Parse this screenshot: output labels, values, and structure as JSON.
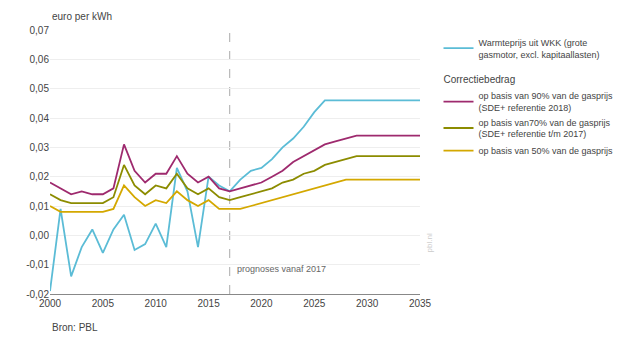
{
  "chart_data": {
    "type": "line",
    "ylabel": "euro per kWh",
    "source": "Bron: PBL",
    "watermark": "pbl.nl",
    "vline": {
      "x": 2017,
      "label": "prognoses vanaf 2017"
    },
    "x": [
      2000,
      2001,
      2002,
      2003,
      2004,
      2005,
      2006,
      2007,
      2008,
      2009,
      2010,
      2011,
      2012,
      2013,
      2014,
      2015,
      2016,
      2017,
      2018,
      2019,
      2020,
      2021,
      2022,
      2023,
      2024,
      2025,
      2026,
      2027,
      2028,
      2029,
      2030,
      2031,
      2032,
      2033,
      2034,
      2035
    ],
    "series": [
      {
        "name": "Warmteprijs uit WKK (grote\ngasmotor, excl. kapitaallasten)",
        "color": "#5bbcd6",
        "values": [
          -0.019,
          0.009,
          -0.014,
          -0.004,
          0.002,
          -0.006,
          0.002,
          0.007,
          -0.005,
          -0.003,
          0.004,
          -0.004,
          0.023,
          0.015,
          -0.004,
          0.02,
          0.017,
          0.015,
          0.019,
          0.022,
          0.023,
          0.026,
          0.03,
          0.033,
          0.037,
          0.042,
          0.046,
          0.046,
          0.046,
          0.046,
          0.046,
          0.046,
          0.046,
          0.046,
          0.046,
          0.046
        ]
      },
      {
        "name": "op basis van 90% van de gasprijs\n(SDE+ referentie 2018)",
        "group": "Correctiebedrag",
        "color": "#9e2a6e",
        "values": [
          0.018,
          0.016,
          0.014,
          0.015,
          0.014,
          0.014,
          0.016,
          0.031,
          0.022,
          0.018,
          0.021,
          0.021,
          0.027,
          0.021,
          0.018,
          0.02,
          0.016,
          0.015,
          0.016,
          0.017,
          0.018,
          0.02,
          0.022,
          0.025,
          0.027,
          0.029,
          0.031,
          0.032,
          0.033,
          0.034,
          0.034,
          0.034,
          0.034,
          0.034,
          0.034,
          0.034
        ]
      },
      {
        "name": "op basis van70% van de gasprijs\n(SDE+ referentie t/m 2017)",
        "group": "Correctiebedrag",
        "color": "#8c8c00",
        "values": [
          0.014,
          0.012,
          0.011,
          0.011,
          0.011,
          0.011,
          0.013,
          0.024,
          0.017,
          0.014,
          0.017,
          0.016,
          0.021,
          0.016,
          0.014,
          0.016,
          0.013,
          0.012,
          0.013,
          0.014,
          0.015,
          0.016,
          0.018,
          0.019,
          0.021,
          0.022,
          0.024,
          0.025,
          0.026,
          0.027,
          0.027,
          0.027,
          0.027,
          0.027,
          0.027,
          0.027
        ]
      },
      {
        "name": "op basis van 50% van de gasprijs",
        "group": "Correctiebedrag",
        "color": "#d4a800",
        "values": [
          0.01,
          0.008,
          0.008,
          0.008,
          0.008,
          0.008,
          0.009,
          0.017,
          0.013,
          0.01,
          0.012,
          0.011,
          0.015,
          0.012,
          0.01,
          0.012,
          0.009,
          0.009,
          0.009,
          0.01,
          0.011,
          0.012,
          0.013,
          0.014,
          0.015,
          0.016,
          0.017,
          0.018,
          0.019,
          0.019,
          0.019,
          0.019,
          0.019,
          0.019,
          0.019,
          0.019
        ]
      }
    ],
    "xlim": [
      2000,
      2035
    ],
    "xticks": [
      2000,
      2005,
      2010,
      2015,
      2020,
      2025,
      2030,
      2035
    ],
    "ylim": [
      -0.02,
      0.07
    ],
    "yticks": [
      {
        "value": -0.02,
        "label": "-0,02"
      },
      {
        "value": -0.01,
        "label": "-0,01"
      },
      {
        "value": 0.0,
        "label": "0,00"
      },
      {
        "value": 0.01,
        "label": "0,01"
      },
      {
        "value": 0.02,
        "label": "0,02"
      },
      {
        "value": 0.03,
        "label": "0,03"
      },
      {
        "value": 0.04,
        "label": "0,04"
      },
      {
        "value": 0.05,
        "label": "0,05"
      },
      {
        "value": 0.06,
        "label": "0,06"
      },
      {
        "value": 0.07,
        "label": "0,07"
      }
    ],
    "grid": true,
    "legend": "right"
  }
}
